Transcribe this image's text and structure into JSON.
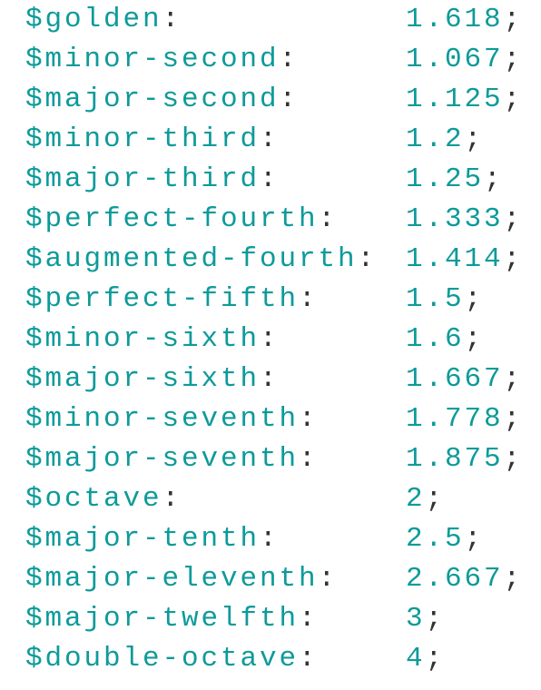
{
  "code": {
    "lines": [
      {
        "name": "$golden",
        "colon": ":",
        "value": "1.618",
        "semicolon": ";"
      },
      {
        "name": "$minor-second",
        "colon": ":",
        "value": "1.067",
        "semicolon": ";"
      },
      {
        "name": "$major-second",
        "colon": ":",
        "value": "1.125",
        "semicolon": ";"
      },
      {
        "name": "$minor-third",
        "colon": ":",
        "value": "1.2",
        "semicolon": ";"
      },
      {
        "name": "$major-third",
        "colon": ":",
        "value": "1.25",
        "semicolon": ";"
      },
      {
        "name": "$perfect-fourth",
        "colon": ":",
        "value": "1.333",
        "semicolon": ";"
      },
      {
        "name": "$augmented-fourth",
        "colon": ":",
        "value": "1.414",
        "semicolon": ";"
      },
      {
        "name": "$perfect-fifth",
        "colon": ":",
        "value": "1.5",
        "semicolon": ";"
      },
      {
        "name": "$minor-sixth",
        "colon": ":",
        "value": "1.6",
        "semicolon": ";"
      },
      {
        "name": "$major-sixth",
        "colon": ":",
        "value": "1.667",
        "semicolon": ";"
      },
      {
        "name": "$minor-seventh",
        "colon": ":",
        "value": "1.778",
        "semicolon": ";"
      },
      {
        "name": "$major-seventh",
        "colon": ":",
        "value": "1.875",
        "semicolon": ";"
      },
      {
        "name": "$octave",
        "colon": ":",
        "value": "2",
        "semicolon": ";"
      },
      {
        "name": "$major-tenth",
        "colon": ":",
        "value": "2.5",
        "semicolon": ";"
      },
      {
        "name": "$major-eleventh",
        "colon": ":",
        "value": "2.667",
        "semicolon": ";"
      },
      {
        "name": "$major-twelfth",
        "colon": ":",
        "value": "3",
        "semicolon": ";"
      },
      {
        "name": "$double-octave",
        "colon": ":",
        "value": "4",
        "semicolon": ";"
      }
    ]
  }
}
